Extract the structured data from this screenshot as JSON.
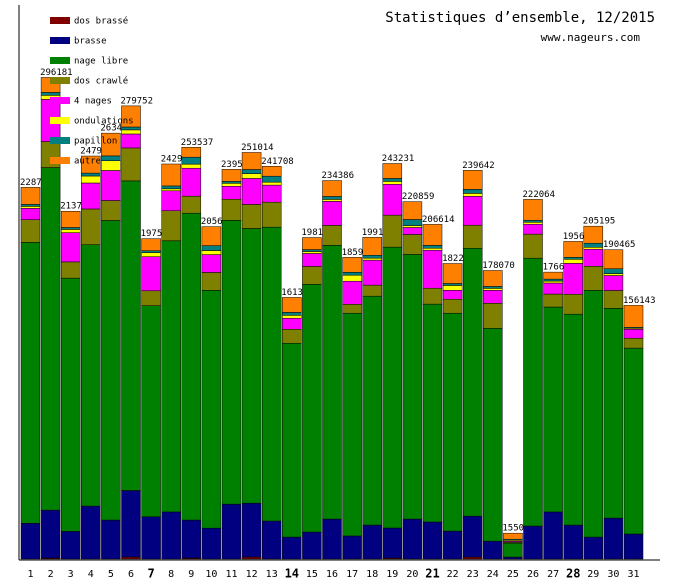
{
  "chart_data": {
    "type": "stacked-bar",
    "title": "Statistiques d’ensemble, 12/2015",
    "subtitle": "www.nageurs.com",
    "categories": [
      "1",
      "2",
      "3",
      "4",
      "5",
      "6",
      "7",
      "8",
      "9",
      "10",
      "11",
      "12",
      "13",
      "14",
      "15",
      "16",
      "17",
      "18",
      "19",
      "20",
      "21",
      "22",
      "23",
      "24",
      "25",
      "26",
      "27",
      "28",
      "29",
      "30",
      "31"
    ],
    "bar_labels": [
      "2287",
      "296181",
      "2137",
      "2479",
      "2634",
      "279752",
      "1975",
      "2429",
      "253537",
      "2056",
      "2395",
      "251014",
      "241708",
      "1613",
      "1981",
      "234386",
      "1859",
      "1991",
      "243231",
      "220859",
      "206614",
      "1822",
      "239642",
      "178070",
      "1550",
      "222064",
      "1766",
      "1956",
      "205195",
      "190465",
      "156143"
    ],
    "ylim": [
      0,
      340000
    ],
    "series": [
      {
        "name": "dos brassé",
        "color": "#800000",
        "values": [
          0,
          600,
          0,
          0,
          0,
          1200,
          0,
          0,
          600,
          0,
          0,
          1200,
          0,
          0,
          0,
          0,
          0,
          0,
          600,
          0,
          0,
          0,
          1200,
          0,
          0,
          0,
          0,
          0,
          0,
          0,
          0
        ]
      },
      {
        "name": "brasse",
        "color": "#000080",
        "values": [
          22000,
          29500,
          17000,
          32600,
          24000,
          41000,
          26000,
          29000,
          23400,
          19000,
          33800,
          33200,
          23400,
          13500,
          16600,
          24600,
          14200,
          20900,
          18500,
          24600,
          22800,
          17200,
          25200,
          11000,
          1200,
          20300,
          29000,
          20900,
          13500,
          25200,
          15400
        ]
      },
      {
        "name": "nage libre",
        "color": "#008000",
        "values": [
          173000,
          211000,
          156000,
          161000,
          184500,
          190700,
          130000,
          167000,
          189000,
          146500,
          174800,
          169200,
          181000,
          119400,
          152600,
          168600,
          137200,
          141000,
          173000,
          163000,
          134200,
          134200,
          165000,
          131100,
          8600,
          165000,
          126200,
          129900,
          152000,
          129200,
          114500
        ]
      },
      {
        "name": "dos crawlé",
        "color": "#808000",
        "values": [
          14000,
          16000,
          10000,
          22000,
          12300,
          20300,
          9200,
          18500,
          10500,
          11000,
          13000,
          14800,
          15400,
          8600,
          11000,
          12300,
          5500,
          6800,
          19700,
          12300,
          9800,
          8600,
          14200,
          15400,
          600,
          14800,
          8000,
          12300,
          14800,
          11000,
          6100
        ]
      },
      {
        "name": "4 nages",
        "color": "#ff00ff",
        "values": [
          7000,
          26000,
          18000,
          16000,
          18500,
          8600,
          21000,
          12300,
          17200,
          11000,
          8000,
          16000,
          10500,
          6800,
          8000,
          14800,
          14200,
          15400,
          19000,
          4300,
          23400,
          5500,
          17800,
          8000,
          600,
          6100,
          6800,
          19000,
          10500,
          9200,
          5500
        ]
      },
      {
        "name": "ondulations",
        "color": "#ffff00",
        "values": [
          1200,
          2500,
          2000,
          4300,
          6000,
          2500,
          2500,
          1200,
          2500,
          2500,
          1800,
          3000,
          1800,
          1800,
          1200,
          1200,
          3700,
          1200,
          1800,
          1200,
          1200,
          3000,
          1800,
          1200,
          600,
          1200,
          1200,
          2500,
          1200,
          1200,
          600
        ]
      },
      {
        "name": "papillon",
        "color": "#008080",
        "values": [
          1200,
          1800,
          1200,
          1800,
          3000,
          1800,
          1200,
          1800,
          4300,
          3000,
          1200,
          2500,
          3700,
          1800,
          1200,
          1800,
          1800,
          1800,
          1800,
          3700,
          1800,
          1200,
          2500,
          1200,
          600,
          1200,
          1200,
          1200,
          2500,
          3000,
          600
        ]
      },
      {
        "name": "autre",
        "color": "#ff8000",
        "values": [
          10500,
          9200,
          10000,
          10500,
          14000,
          13000,
          7400,
          13500,
          6100,
          11700,
          7400,
          10500,
          6100,
          9200,
          7400,
          9800,
          9200,
          11000,
          9200,
          11000,
          12900,
          12300,
          11700,
          9800,
          3700,
          12900,
          4300,
          9800,
          10500,
          11700,
          13500
        ]
      }
    ]
  }
}
